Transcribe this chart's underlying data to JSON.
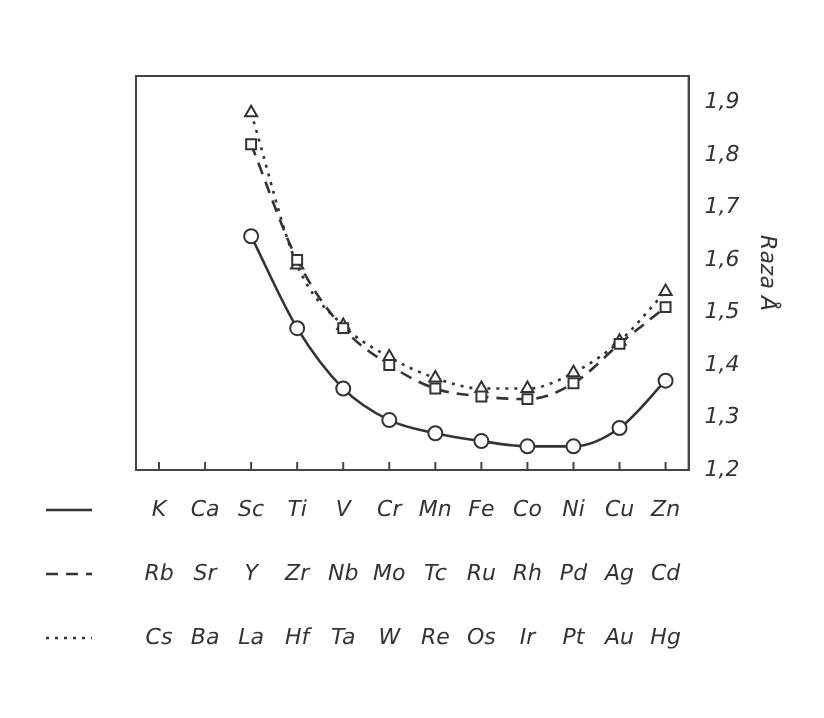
{
  "chart_data": {
    "type": "line",
    "ylabel": "Raza Å",
    "categories": [
      "K\nRb\nCs",
      "Ca\nSr\nBa",
      "Sc\nY\nLa",
      "Ti\nZr\nHf",
      "V\nNb\nTa",
      "Cr\nMo\nW",
      "Mn\nTc\nRe",
      "Fe\nRu\nOs",
      "Co\nRh\nIr",
      "Ni\nPd\nPt",
      "Cu\nAg\nAu",
      "Zn\nCd\nHg"
    ],
    "series": [
      {
        "color": "#333333",
        "marker": "circle",
        "line_style": "solid",
        "values": [
          null,
          null,
          1.645,
          1.47,
          1.355,
          1.295,
          1.27,
          1.255,
          1.245,
          1.245,
          1.28,
          1.37
        ]
      },
      {
        "color": "#333333",
        "marker": "square",
        "line_style": "dashed",
        "values": [
          null,
          null,
          1.82,
          1.6,
          1.47,
          1.4,
          1.355,
          1.34,
          1.335,
          1.365,
          1.44,
          1.51
        ]
      },
      {
        "color": "#333333",
        "marker": "triangle",
        "line_style": "dotted",
        "values": [
          null,
          null,
          1.88,
          1.59,
          1.475,
          1.415,
          1.375,
          1.355,
          1.355,
          1.385,
          1.445,
          1.54
        ]
      }
    ],
    "ylim": [
      1.2,
      1.95
    ],
    "yticks": [
      {
        "value": 1.2,
        "label": "1,2"
      },
      {
        "value": 1.3,
        "label": "1,3"
      },
      {
        "value": 1.4,
        "label": "1,4"
      },
      {
        "value": 1.5,
        "label": "1,5"
      },
      {
        "value": 1.6,
        "label": "1,6"
      },
      {
        "value": 1.7,
        "label": "1,7"
      },
      {
        "value": 1.8,
        "label": "1,8"
      },
      {
        "value": 1.9,
        "label": "1,9"
      }
    ],
    "grid": false,
    "legend": false
  }
}
